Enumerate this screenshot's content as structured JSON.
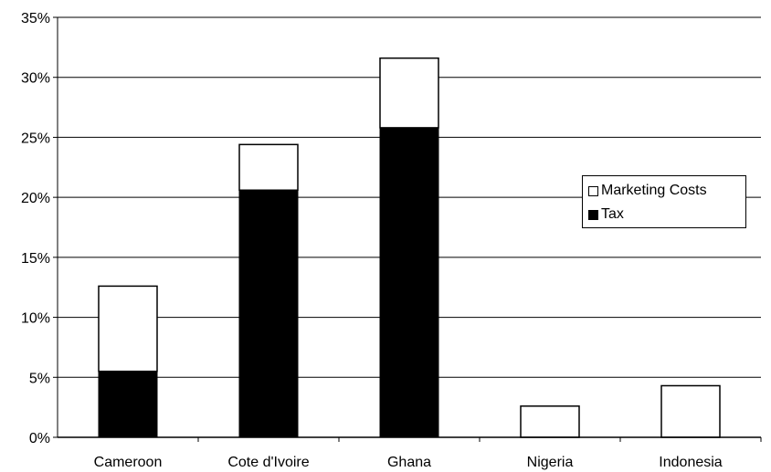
{
  "chart_data": {
    "type": "bar",
    "stacked": true,
    "title": "",
    "xlabel": "",
    "ylabel": "",
    "categories": [
      "Cameroon",
      "Cote d'Ivoire",
      "Ghana",
      "Nigeria",
      "Indonesia"
    ],
    "series": [
      {
        "name": "Tax",
        "values": [
          5.5,
          20.6,
          25.8,
          0,
          0
        ],
        "color": "#000000"
      },
      {
        "name": "Marketing Costs",
        "values": [
          7.1,
          3.8,
          5.8,
          2.6,
          4.3
        ],
        "color": "#ffffff"
      }
    ],
    "ylim": [
      0,
      35
    ],
    "yticks": [
      "0%",
      "5%",
      "10%",
      "15%",
      "20%",
      "25%",
      "30%",
      "35%"
    ],
    "ytick_values": [
      0,
      5,
      10,
      15,
      20,
      25,
      30,
      35
    ],
    "grid": true,
    "legend_position": "right",
    "legend": [
      {
        "label": "Marketing Costs",
        "color": "#ffffff"
      },
      {
        "label": "Tax",
        "color": "#000000"
      }
    ]
  }
}
